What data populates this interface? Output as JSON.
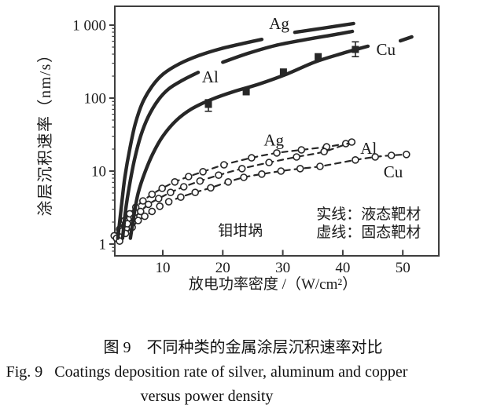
{
  "colors": {
    "ink": "#272727",
    "axis": "#3e3e3e",
    "text": "#1a1a1a",
    "marker_fill": "#ffffff",
    "background": "#ffffff"
  },
  "figure": {
    "caption_cn": "图 9　不同种类的金属涂层沉积速率对比",
    "caption_en_line1": "Fig. 9   Coatings deposition rate of silver, aluminum and copper",
    "caption_en_line2": "versus power density"
  },
  "chart_data": {
    "type": "line",
    "title": "",
    "xlabel": "放电功率密度 /（W/cm²）",
    "ylabel": "涂层沉积速率（nm/s）",
    "x_scale": "linear",
    "y_scale": "log",
    "xlim": [
      2,
      56
    ],
    "ylim": [
      0.7,
      1800
    ],
    "grid": false,
    "x_ticks": [
      10,
      20,
      30,
      40,
      50
    ],
    "y_ticks": [
      1,
      10,
      100,
      1000
    ],
    "y_tick_labels": [
      "1",
      "10",
      "100",
      "1 000"
    ],
    "legend_position": "inside-lower-right",
    "annotations": [
      {
        "id": "crucible-note",
        "text": "钼坩埚",
        "x": 19.2,
        "y": 1.56,
        "anchor": "start",
        "size": 19
      },
      {
        "id": "legend-solid-note",
        "text": "实线：液态靶材",
        "x": 35.6,
        "y": 2.63,
        "anchor": "start",
        "size": 19
      },
      {
        "id": "legend-dashed-note",
        "text": "虚线：固态靶材",
        "x": 35.6,
        "y": 1.49,
        "anchor": "start",
        "size": 19
      }
    ],
    "series": [
      {
        "name": "Ag",
        "target": "固态靶材",
        "style": "dashed",
        "marker": "circle",
        "label": {
          "text": "Ag",
          "x": 28.5,
          "y": 26.5
        },
        "segments": [
          [
            [
              1.9,
              1.3
            ],
            [
              2.8,
              1.6
            ],
            [
              3.6,
              2.1
            ],
            [
              4.5,
              2.6
            ],
            [
              5.5,
              3.2
            ],
            [
              6.7,
              3.9
            ],
            [
              8.2,
              4.8
            ],
            [
              9.9,
              5.8
            ],
            [
              12,
              7.1
            ],
            [
              14.3,
              8.4
            ],
            [
              16.7,
              9.8
            ],
            [
              20.2,
              12.2
            ],
            [
              24.8,
              15.2
            ],
            [
              29,
              17.7
            ],
            [
              33.1,
              19.5
            ],
            [
              37.3,
              21.5
            ],
            [
              40.5,
              23.8
            ]
          ]
        ]
      },
      {
        "name": "Al",
        "target": "固态靶材",
        "style": "dashed",
        "marker": "circle",
        "label": {
          "text": "Al",
          "x": 44.3,
          "y": 20.5
        },
        "segments": [
          [
            [
              2.3,
              1.2
            ],
            [
              3.2,
              1.5
            ],
            [
              4.1,
              1.9
            ],
            [
              5.2,
              2.3
            ],
            [
              6.3,
              2.8
            ],
            [
              7.6,
              3.5
            ],
            [
              9.3,
              4.2
            ],
            [
              11.3,
              5.1
            ],
            [
              13.5,
              6.1
            ],
            [
              16.2,
              7.3
            ],
            [
              19.3,
              8.8
            ],
            [
              23.2,
              10.8
            ],
            [
              27.7,
              13.1
            ],
            [
              32.3,
              15.6
            ],
            [
              36.9,
              18.5
            ],
            [
              41.5,
              25
            ]
          ]
        ]
      },
      {
        "name": "Cu",
        "target": "固态靶材",
        "style": "dashed",
        "marker": "circle",
        "label": {
          "text": "Cu",
          "x": 48.4,
          "y": 9.8
        },
        "segments": [
          [
            [
              2.8,
              1.1
            ],
            [
              3.8,
              1.4
            ],
            [
              4.9,
              1.7
            ],
            [
              5.9,
              2.1
            ],
            [
              7,
              2.4
            ],
            [
              8.2,
              2.8
            ],
            [
              9.5,
              3.3
            ],
            [
              11,
              3.8
            ],
            [
              13,
              4.4
            ],
            [
              15.4,
              5.1
            ],
            [
              18,
              5.9
            ],
            [
              20.9,
              7.1
            ],
            [
              23.5,
              8.2
            ],
            [
              26.5,
              9.1
            ],
            [
              29.7,
              10
            ],
            [
              32.9,
              10.8
            ],
            [
              36.2,
              11.6
            ],
            [
              42.1,
              14.2
            ],
            [
              45.4,
              15.6
            ],
            [
              48.1,
              16.4
            ],
            [
              50.6,
              16.9
            ]
          ]
        ]
      },
      {
        "name": "Ag",
        "target": "液态靶材",
        "style": "solid",
        "label": {
          "text": "Ag",
          "x": 29.4,
          "y": 1050
        },
        "segments": [
          [
            [
              2.5,
              1.2
            ],
            [
              3.1,
              3.3
            ],
            [
              3.7,
              8.4
            ],
            [
              4.5,
              20
            ],
            [
              5.4,
              44
            ],
            [
              6.6,
              86
            ],
            [
              8.2,
              145
            ],
            [
              10.1,
              215
            ],
            [
              12.8,
              296
            ],
            [
              15.9,
              380
            ],
            [
              19.6,
              473
            ],
            [
              23.5,
              563
            ],
            [
              26.5,
              638
            ]
          ],
          [
            [
              32,
              797
            ],
            [
              36.6,
              905
            ],
            [
              41.8,
              1050
            ]
          ]
        ]
      },
      {
        "name": "Al",
        "target": "液态靶材",
        "style": "solid",
        "label": {
          "text": "Al",
          "x": 17.9,
          "y": 195
        },
        "segments": [
          [
            [
              3.3,
              1.2
            ],
            [
              3.8,
              2.9
            ],
            [
              4.5,
              6.7
            ],
            [
              5.3,
              14.5
            ],
            [
              6.3,
              30
            ],
            [
              7.6,
              56
            ],
            [
              9.2,
              93
            ],
            [
              11,
              134
            ],
            [
              13.3,
              176
            ],
            [
              15.9,
              225
            ]
          ],
          [
            [
              20,
              310
            ],
            [
              24.2,
              410
            ],
            [
              28.7,
              524
            ],
            [
              34,
              638
            ],
            [
              38.6,
              740
            ],
            [
              41.6,
              820
            ]
          ]
        ]
      },
      {
        "name": "Cu",
        "target": "液态靶材",
        "style": "solid",
        "label": {
          "text": "Cu",
          "x": 47.2,
          "y": 465
        },
        "segments": [
          [
            [
              4.6,
              1.2
            ],
            [
              5.2,
              2.5
            ],
            [
              5.9,
              5
            ],
            [
              7,
              9.5
            ],
            [
              8.3,
              17
            ],
            [
              10,
              30
            ],
            [
              12.2,
              49
            ],
            [
              14.8,
              71
            ],
            [
              18,
              95
            ],
            [
              21.7,
              122
            ],
            [
              26.1,
              156
            ],
            [
              30.7,
              214
            ],
            [
              35.3,
              311
            ],
            [
              39.9,
              409
            ],
            [
              44.2,
              514
            ]
          ],
          [
            [
              49.6,
              610
            ],
            [
              51.5,
              690
            ]
          ]
        ],
        "markers": {
          "shape": "square",
          "points": [
            [
              17.6,
              82
            ],
            [
              23.9,
              122
            ],
            [
              30.1,
              228
            ],
            [
              35.9,
              370
            ],
            [
              42.1,
              464
            ]
          ],
          "error_bars": [
            {
              "x": 17.6,
              "lo": 66,
              "hi": 95
            },
            {
              "x": 42.1,
              "lo": 370,
              "hi": 590
            }
          ]
        }
      }
    ]
  }
}
